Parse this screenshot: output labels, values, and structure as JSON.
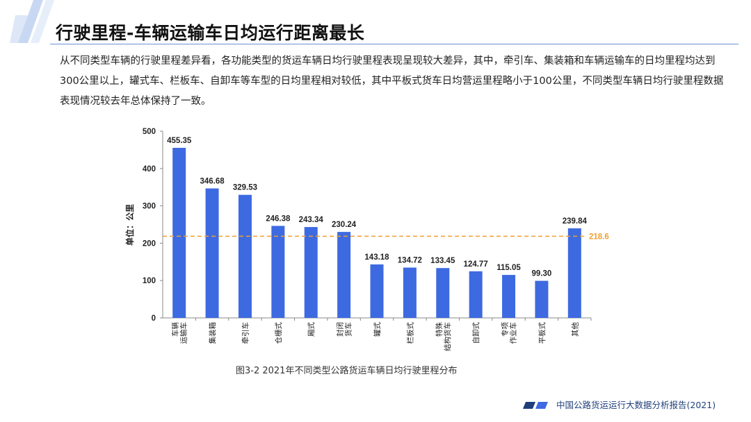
{
  "header": {
    "title": "行驶里程-车辆运输车日均运行距离最长"
  },
  "description": "从不同类型车辆的行驶里程差异看，各功能类型的货运车辆日均行驶里程表现呈现较大差异，其中，牵引车、集装箱和车辆运输车的日均里程均达到300公里以上，罐式车、栏板车、自卸车等车型的日均里程相对较低，其中平板式货车日均营运里程略小于100公里，不同类型车辆日均行驶里程数据表现情况较去年总体保持了一致。",
  "chart_data": {
    "type": "bar",
    "categories": [
      [
        "车辆",
        "运输车"
      ],
      [
        "集装箱"
      ],
      [
        "牵引车"
      ],
      [
        "仓栅式"
      ],
      [
        "厢式"
      ],
      [
        "封闭",
        "货车"
      ],
      [
        "罐式"
      ],
      [
        "栏板式"
      ],
      [
        "特殊",
        "结构货车"
      ],
      [
        "自卸式"
      ],
      [
        "专项",
        "作业车"
      ],
      [
        "平板式"
      ],
      [
        "其他"
      ]
    ],
    "values": [
      455.35,
      346.68,
      329.53,
      246.38,
      243.34,
      230.24,
      143.18,
      134.72,
      133.45,
      124.77,
      115.05,
      99.3,
      239.84
    ],
    "value_labels": [
      "455.35",
      "346.68",
      "329.53",
      "246.38",
      "243.34",
      "230.24",
      "143.18",
      "134.72",
      "133.45",
      "124.77",
      "115.05",
      "99.30",
      "239.84"
    ],
    "ylabel": "单位：公里",
    "ylim": [
      0,
      500
    ],
    "yticks": [
      0,
      100,
      200,
      300,
      400,
      500
    ],
    "reference_line": {
      "value": 218.6,
      "label": "218.6",
      "color": "#f0a030"
    },
    "bar_color": "#3d6ae0",
    "grid": false,
    "caption": "图3-2 2021年不同类型公路货运车辆日均行驶里程分布"
  },
  "footer": {
    "text": "中国公路货运运行大数据分析报告(2021)"
  },
  "colors": {
    "accent": "#1f3f7a",
    "title_rule": "#6a8fd6"
  }
}
